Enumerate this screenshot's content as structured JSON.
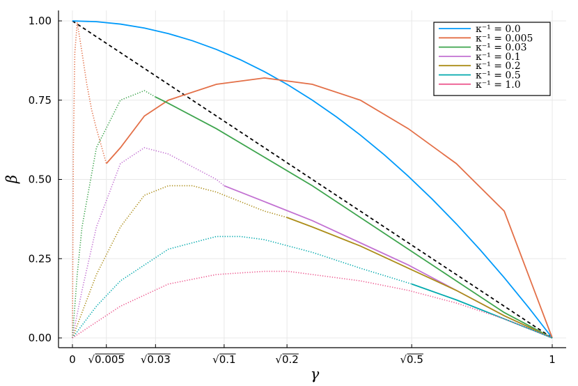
{
  "chart_data": {
    "type": "line",
    "title": "",
    "xlabel": "γ",
    "ylabel": "β",
    "xlim": [
      0,
      1
    ],
    "ylim": [
      0,
      1
    ],
    "grid": true,
    "legend_position": "top-right",
    "x_ticks": [
      {
        "value": 0,
        "label": "0"
      },
      {
        "value": 0.0707,
        "label": "√0.005"
      },
      {
        "value": 0.1732,
        "label": "√0.03"
      },
      {
        "value": 0.3162,
        "label": "√0.1"
      },
      {
        "value": 0.4472,
        "label": "√0.2"
      },
      {
        "value": 0.7071,
        "label": "√0.5"
      },
      {
        "value": 1,
        "label": "1"
      }
    ],
    "y_ticks": [
      {
        "value": 0,
        "label": "0.00"
      },
      {
        "value": 0.25,
        "label": "0.25"
      },
      {
        "value": 0.5,
        "label": "0.50"
      },
      {
        "value": 0.75,
        "label": "0.75"
      },
      {
        "value": 1,
        "label": "1.00"
      }
    ],
    "reference_line": {
      "x": [
        0,
        1
      ],
      "y": [
        1,
        0
      ],
      "style": "dashed",
      "color": "#000000"
    },
    "series": [
      {
        "name": "κ⁻¹ = 0.0",
        "kinv": 0.0,
        "color": "#009AFA",
        "dotted": {
          "x": [],
          "y": []
        },
        "solid": {
          "x": [
            0.0,
            0.05,
            0.1,
            0.15,
            0.2,
            0.25,
            0.3,
            0.35,
            0.4,
            0.45,
            0.5,
            0.55,
            0.6,
            0.65,
            0.7,
            0.75,
            0.8,
            0.85,
            0.9,
            0.95,
            1.0
          ],
          "y": [
            1.0,
            0.9975,
            0.99,
            0.9775,
            0.96,
            0.9375,
            0.91,
            0.8775,
            0.84,
            0.7975,
            0.75,
            0.6975,
            0.64,
            0.5775,
            0.51,
            0.4375,
            0.36,
            0.2775,
            0.19,
            0.0975,
            0.0
          ]
        }
      },
      {
        "name": "κ⁻¹ = 0.005",
        "kinv": 0.005,
        "color": "#E36F47",
        "dotted": {
          "x": [
            0.0,
            0.002,
            0.005,
            0.01,
            0.02,
            0.03,
            0.04,
            0.05,
            0.0707
          ],
          "y": [
            0.0,
            0.6,
            0.9,
            0.995,
            0.9,
            0.8,
            0.72,
            0.66,
            0.55
          ]
        },
        "solid": {
          "x": [
            0.0707,
            0.1,
            0.15,
            0.2,
            0.3,
            0.4,
            0.5,
            0.6,
            0.7,
            0.8,
            0.9,
            1.0
          ],
          "y": [
            0.55,
            0.6,
            0.7,
            0.75,
            0.8,
            0.82,
            0.8,
            0.75,
            0.66,
            0.55,
            0.4,
            0.0
          ]
        }
      },
      {
        "name": "κ⁻¹ = 0.03",
        "kinv": 0.03,
        "color": "#3DA44D",
        "dotted": {
          "x": [
            0.0,
            0.01,
            0.02,
            0.05,
            0.1,
            0.15,
            0.1732
          ],
          "y": [
            0.0,
            0.2,
            0.35,
            0.6,
            0.75,
            0.78,
            0.76
          ]
        },
        "solid": {
          "x": [
            0.1732,
            0.2,
            0.3,
            0.4,
            0.5,
            0.6,
            0.7,
            0.8,
            0.9,
            1.0
          ],
          "y": [
            0.76,
            0.74,
            0.66,
            0.57,
            0.48,
            0.38,
            0.28,
            0.18,
            0.08,
            0.0
          ]
        }
      },
      {
        "name": "κ⁻¹ = 0.1",
        "kinv": 0.1,
        "color": "#C271D2",
        "dotted": {
          "x": [
            0.0,
            0.02,
            0.05,
            0.1,
            0.15,
            0.2,
            0.25,
            0.3,
            0.3162
          ],
          "y": [
            0.0,
            0.15,
            0.35,
            0.55,
            0.6,
            0.58,
            0.54,
            0.5,
            0.48
          ]
        },
        "solid": {
          "x": [
            0.3162,
            0.4,
            0.5,
            0.6,
            0.7,
            0.8,
            0.9,
            1.0
          ],
          "y": [
            0.48,
            0.43,
            0.37,
            0.3,
            0.23,
            0.15,
            0.07,
            0.0
          ]
        }
      },
      {
        "name": "κ⁻¹ = 0.2",
        "kinv": 0.2,
        "color": "#AC8D18",
        "dotted": {
          "x": [
            0.0,
            0.05,
            0.1,
            0.15,
            0.2,
            0.25,
            0.3,
            0.35,
            0.4,
            0.4472
          ],
          "y": [
            0.0,
            0.2,
            0.35,
            0.45,
            0.48,
            0.48,
            0.46,
            0.43,
            0.4,
            0.38
          ]
        },
        "solid": {
          "x": [
            0.4472,
            0.5,
            0.6,
            0.7,
            0.8,
            0.9,
            1.0
          ],
          "y": [
            0.38,
            0.35,
            0.29,
            0.22,
            0.15,
            0.07,
            0.0
          ]
        }
      },
      {
        "name": "κ⁻¹ = 0.5",
        "kinv": 0.5,
        "color": "#00A9AD",
        "dotted": {
          "x": [
            0.0,
            0.05,
            0.1,
            0.2,
            0.3,
            0.35,
            0.4,
            0.5,
            0.6,
            0.7071
          ],
          "y": [
            0.0,
            0.1,
            0.18,
            0.28,
            0.32,
            0.32,
            0.31,
            0.27,
            0.22,
            0.17
          ]
        },
        "solid": {
          "x": [
            0.7071,
            0.8,
            0.9,
            1.0
          ],
          "y": [
            0.17,
            0.12,
            0.06,
            0.0
          ]
        }
      },
      {
        "name": "κ⁻¹ = 1.0",
        "kinv": 1.0,
        "color": "#ED5D92",
        "dotted": {
          "x": [
            0.0,
            0.05,
            0.1,
            0.2,
            0.3,
            0.4,
            0.45,
            0.5,
            0.6,
            0.7,
            0.8,
            0.9,
            1.0
          ],
          "y": [
            0.0,
            0.05,
            0.1,
            0.17,
            0.2,
            0.21,
            0.21,
            0.2,
            0.18,
            0.15,
            0.11,
            0.06,
            0.0
          ]
        },
        "solid": {
          "x": [],
          "y": []
        }
      }
    ]
  }
}
